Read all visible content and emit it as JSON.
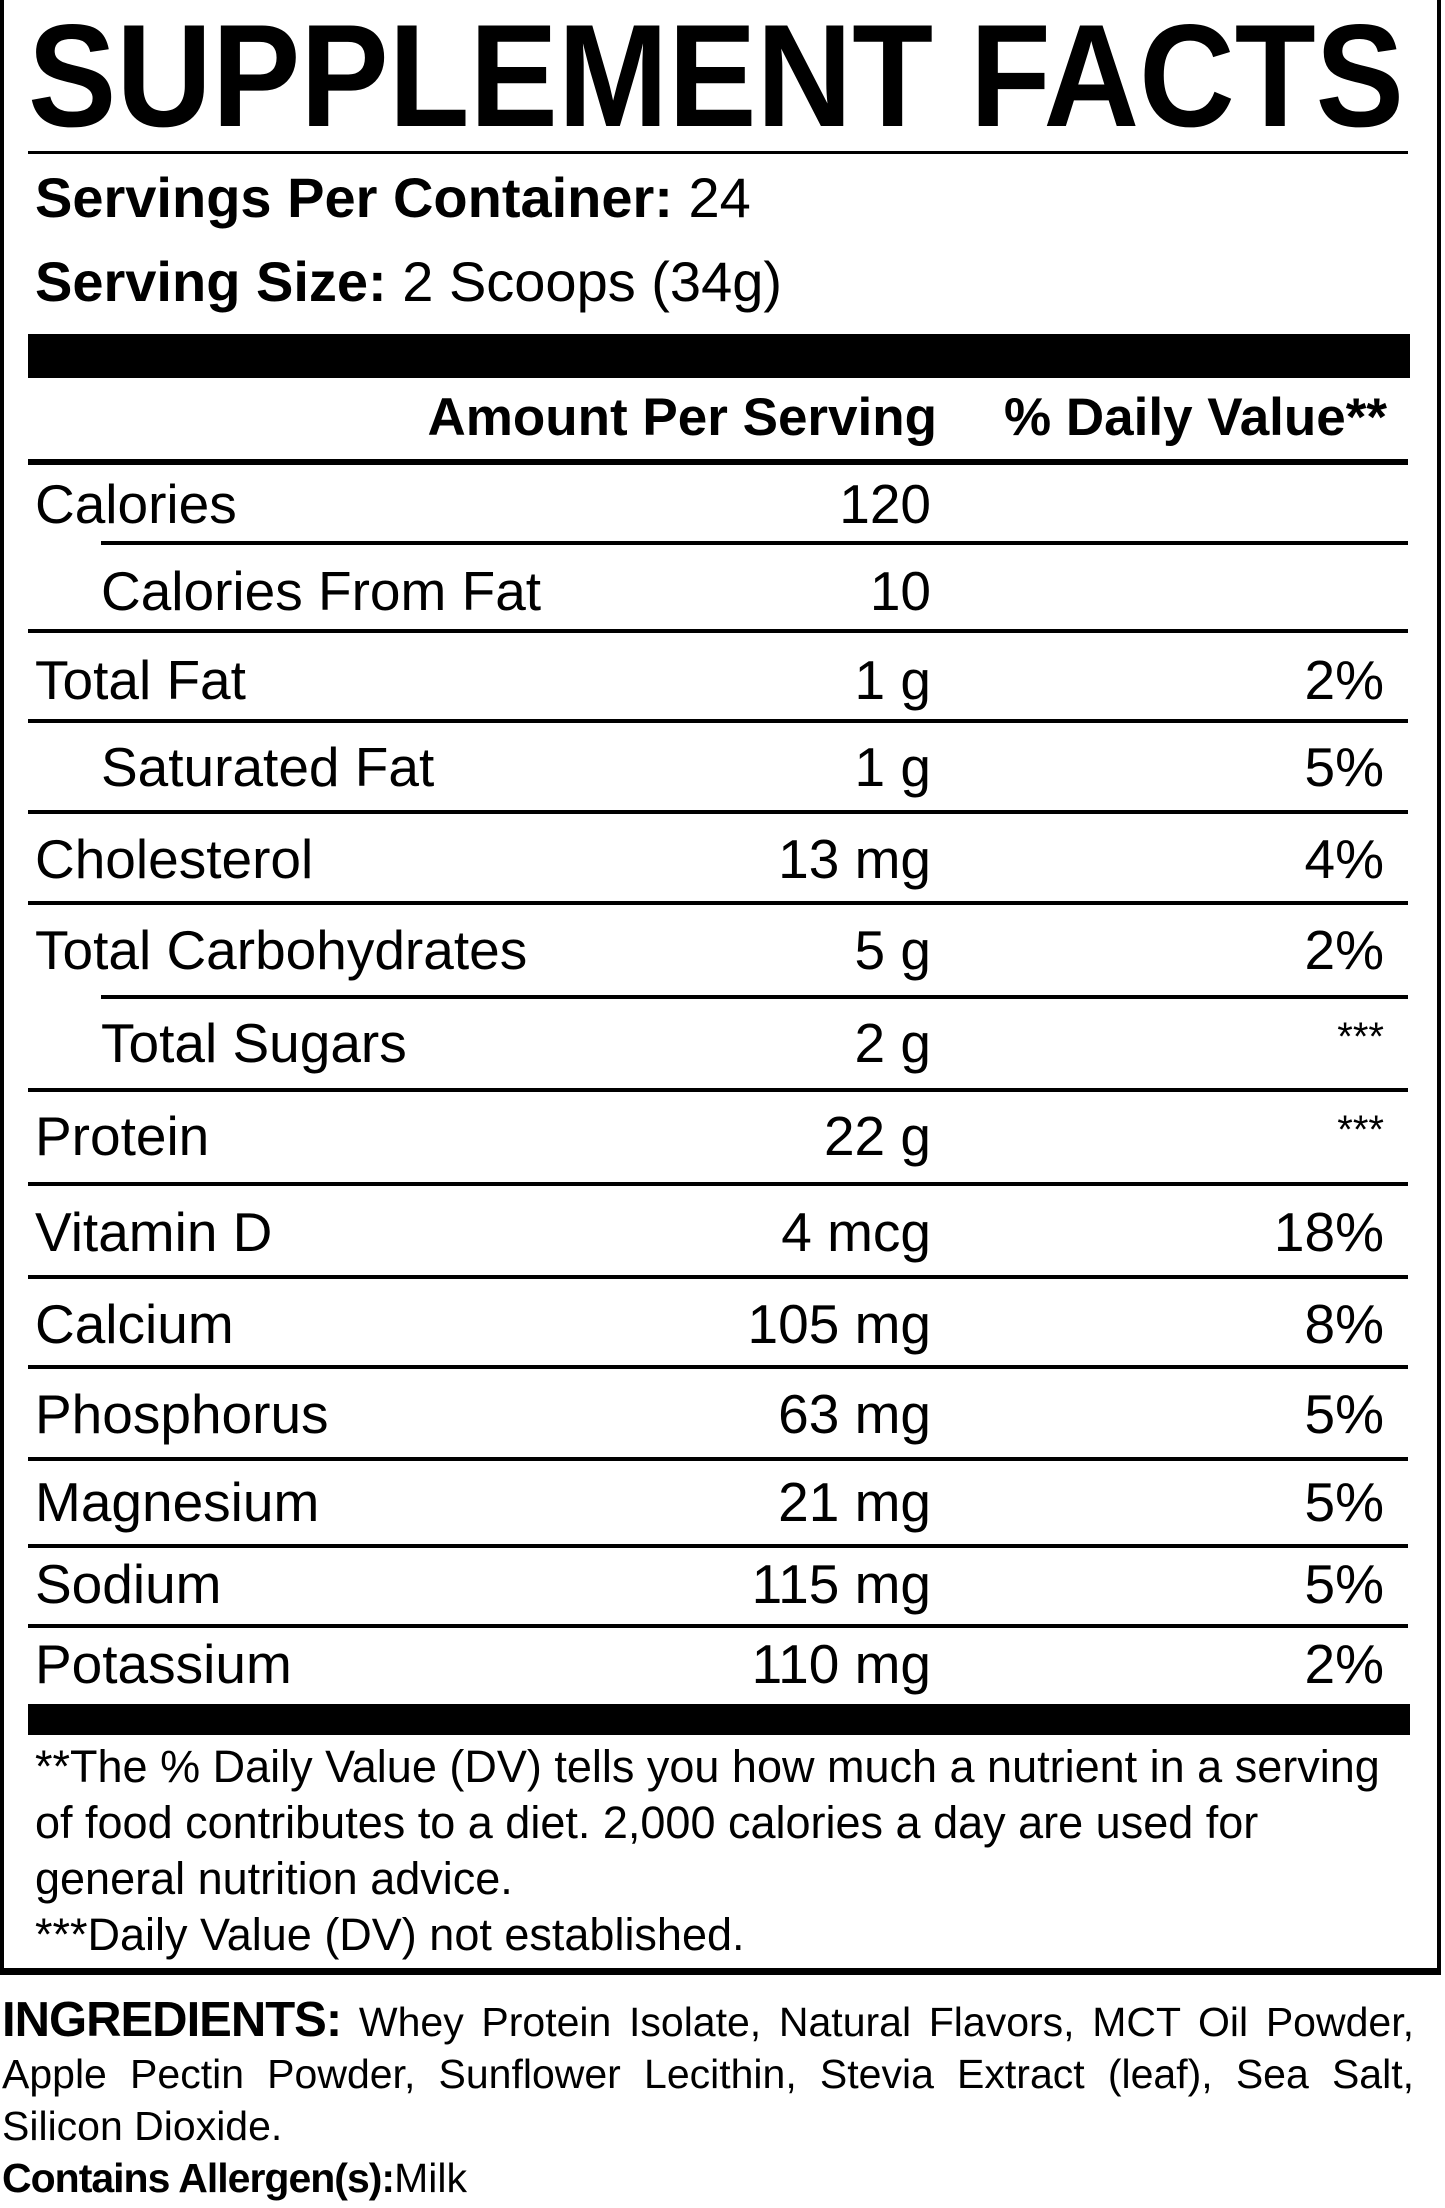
{
  "title": "SUPPLEMENT FACTS",
  "servings_per_container": {
    "label": "Servings Per Container:",
    "value": "24"
  },
  "serving_size": {
    "label": "Serving Size:",
    "value": "2 Scoops (34g)"
  },
  "header": {
    "amount": "Amount Per Serving",
    "daily_value": "% Daily Value**"
  },
  "rows": [
    {
      "label": "Calories",
      "amount": "120",
      "dv": "",
      "indent": false
    },
    {
      "label": "Calories From Fat",
      "amount": "10",
      "dv": "",
      "indent": true
    },
    {
      "label": "Total Fat",
      "amount": "1 g",
      "dv": "2%",
      "indent": false
    },
    {
      "label": "Saturated Fat",
      "amount": "1 g",
      "dv": "5%",
      "indent": true
    },
    {
      "label": "Cholesterol",
      "amount": "13 mg",
      "dv": "4%",
      "indent": false
    },
    {
      "label": "Total Carbohydrates",
      "amount": "5 g",
      "dv": "2%",
      "indent": false
    },
    {
      "label": "Total Sugars",
      "amount": "2 g",
      "dv": "***",
      "indent": true
    },
    {
      "label": "Protein",
      "amount": "22 g",
      "dv": "***",
      "indent": false
    },
    {
      "label": "Vitamin D",
      "amount": "4 mcg",
      "dv": "18%",
      "indent": false
    },
    {
      "label": "Calcium",
      "amount": "105 mg",
      "dv": "8%",
      "indent": false
    },
    {
      "label": "Phosphorus",
      "amount": "63 mg",
      "dv": "5%",
      "indent": false
    },
    {
      "label": "Magnesium",
      "amount": "21 mg",
      "dv": "5%",
      "indent": false
    },
    {
      "label": "Sodium",
      "amount": "115 mg",
      "dv": "5%",
      "indent": false
    },
    {
      "label": "Potassium",
      "amount": "110 mg",
      "dv": "2%",
      "indent": false
    }
  ],
  "footnotes": [
    "**The % Daily Value (DV) tells you how much a nutrient in a serving of food contributes to a diet. 2,000 calories a day are used for general nutrition advice.",
    "***Daily Value (DV) not established."
  ],
  "ingredients": {
    "label": "INGREDIENTS:",
    "text": "Whey Protein Isolate, Natural Flavors, MCT Oil Powder, Apple Pectin Powder, Sunflower Lecithin, Stevia Extract (leaf), Sea Salt, Silicon Dioxide."
  },
  "allergens": {
    "label": "Contains Allergen(s):",
    "value": "Milk"
  }
}
